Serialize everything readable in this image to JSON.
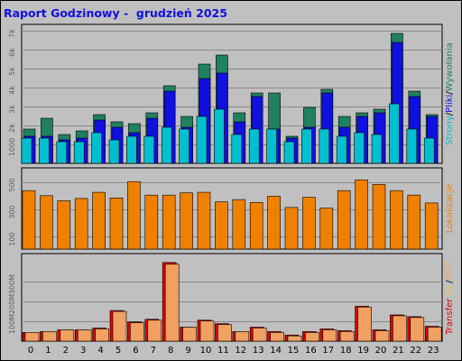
{
  "title": "Raport Godzinowy -  grudzień 2025",
  "hours": [
    "0",
    "1",
    "2",
    "3",
    "4",
    "5",
    "6",
    "7",
    "8",
    "9",
    "10",
    "11",
    "12",
    "13",
    "14",
    "15",
    "16",
    "17",
    "18",
    "19",
    "20",
    "21",
    "22",
    "23"
  ],
  "chart_data": [
    {
      "type": "bar",
      "name": "top",
      "right_label_parts": [
        {
          "text": "Strony",
          "color": "#00c0d0"
        },
        {
          "text": "/",
          "color": "#000000"
        },
        {
          "text": "Pliki",
          "color": "#1010e0"
        },
        {
          "text": "/",
          "color": "#000000"
        },
        {
          "text": "Wywołania",
          "color": "#208060"
        }
      ],
      "y_ticks": [
        "1000",
        "2k",
        "3k",
        "4k",
        "5k",
        "6k",
        "7k"
      ],
      "ylim": [
        0,
        7500
      ],
      "categories": [
        "0",
        "1",
        "2",
        "3",
        "4",
        "5",
        "6",
        "7",
        "8",
        "9",
        "10",
        "11",
        "12",
        "13",
        "14",
        "15",
        "16",
        "17",
        "18",
        "19",
        "20",
        "21",
        "22",
        "23"
      ],
      "series": [
        {
          "key": "wywolania",
          "color": "#208060",
          "values": [
            1900,
            2500,
            1600,
            1800,
            2700,
            2300,
            2200,
            2800,
            4300,
            2600,
            5500,
            6000,
            2800,
            3900,
            3900,
            1500,
            3100,
            4100,
            2600,
            2800,
            3000,
            7200,
            4000,
            2700
          ]
        },
        {
          "key": "pliki",
          "color": "#1010e0",
          "values": [
            1500,
            1500,
            1300,
            1400,
            2400,
            2000,
            1700,
            2500,
            4000,
            2000,
            4700,
            5000,
            2300,
            3700,
            1900,
            1400,
            2000,
            3900,
            2000,
            2600,
            2800,
            6700,
            3700,
            2600
          ]
        },
        {
          "key": "strony",
          "color": "#00c0d0",
          "values": [
            1400,
            1400,
            1200,
            1200,
            1700,
            1300,
            1500,
            1500,
            2000,
            1900,
            2600,
            3000,
            1600,
            1900,
            1900,
            1200,
            1900,
            1900,
            1500,
            1700,
            1600,
            3300,
            1900,
            1400
          ]
        }
      ]
    },
    {
      "type": "bar",
      "name": "middle",
      "right_label_parts": [
        {
          "text": "Lokalizacje",
          "color": "#f08000"
        }
      ],
      "y_ticks": [
        "100",
        "300",
        "500"
      ],
      "ylim": [
        0,
        690
      ],
      "categories": [
        "0",
        "1",
        "2",
        "3",
        "4",
        "5",
        "6",
        "7",
        "8",
        "9",
        "10",
        "11",
        "12",
        "13",
        "14",
        "15",
        "16",
        "17",
        "18",
        "19",
        "20",
        "21",
        "22",
        "23"
      ],
      "series": [
        {
          "key": "lokalizacje",
          "color": "#f08000",
          "values": [
            520,
            475,
            430,
            450,
            505,
            455,
            600,
            480,
            480,
            500,
            505,
            420,
            440,
            415,
            470,
            370,
            460,
            365,
            520,
            615,
            575,
            520,
            480,
            410
          ]
        }
      ]
    },
    {
      "type": "bar",
      "name": "bottom",
      "right_label_parts": [
        {
          "text": "Transfer",
          "color": "#e00000"
        },
        {
          "text": "  IN ",
          "color": "#f0c040"
        },
        {
          "text": "/",
          "color": "#000000"
        },
        {
          "text": "OUT",
          "color": "#f0a060"
        }
      ],
      "y_ticks": [
        "100M",
        "200M",
        "300M"
      ],
      "ylim": [
        0,
        480
      ],
      "categories": [
        "0",
        "1",
        "2",
        "3",
        "4",
        "5",
        "6",
        "7",
        "8",
        "9",
        "10",
        "11",
        "12",
        "13",
        "14",
        "15",
        "16",
        "17",
        "18",
        "19",
        "20",
        "21",
        "22",
        "23"
      ],
      "series": [
        {
          "key": "in",
          "color": "#e00000",
          "values": [
            50,
            55,
            65,
            65,
            75,
            175,
            110,
            125,
            450,
            80,
            120,
            100,
            55,
            80,
            55,
            35,
            55,
            70,
            60,
            200,
            65,
            150,
            140,
            85
          ]
        },
        {
          "key": "out",
          "color": "#f0a060",
          "values": [
            50,
            55,
            65,
            65,
            70,
            170,
            105,
            120,
            440,
            80,
            115,
            95,
            55,
            75,
            50,
            30,
            50,
            65,
            55,
            195,
            60,
            145,
            135,
            80
          ]
        }
      ]
    }
  ]
}
